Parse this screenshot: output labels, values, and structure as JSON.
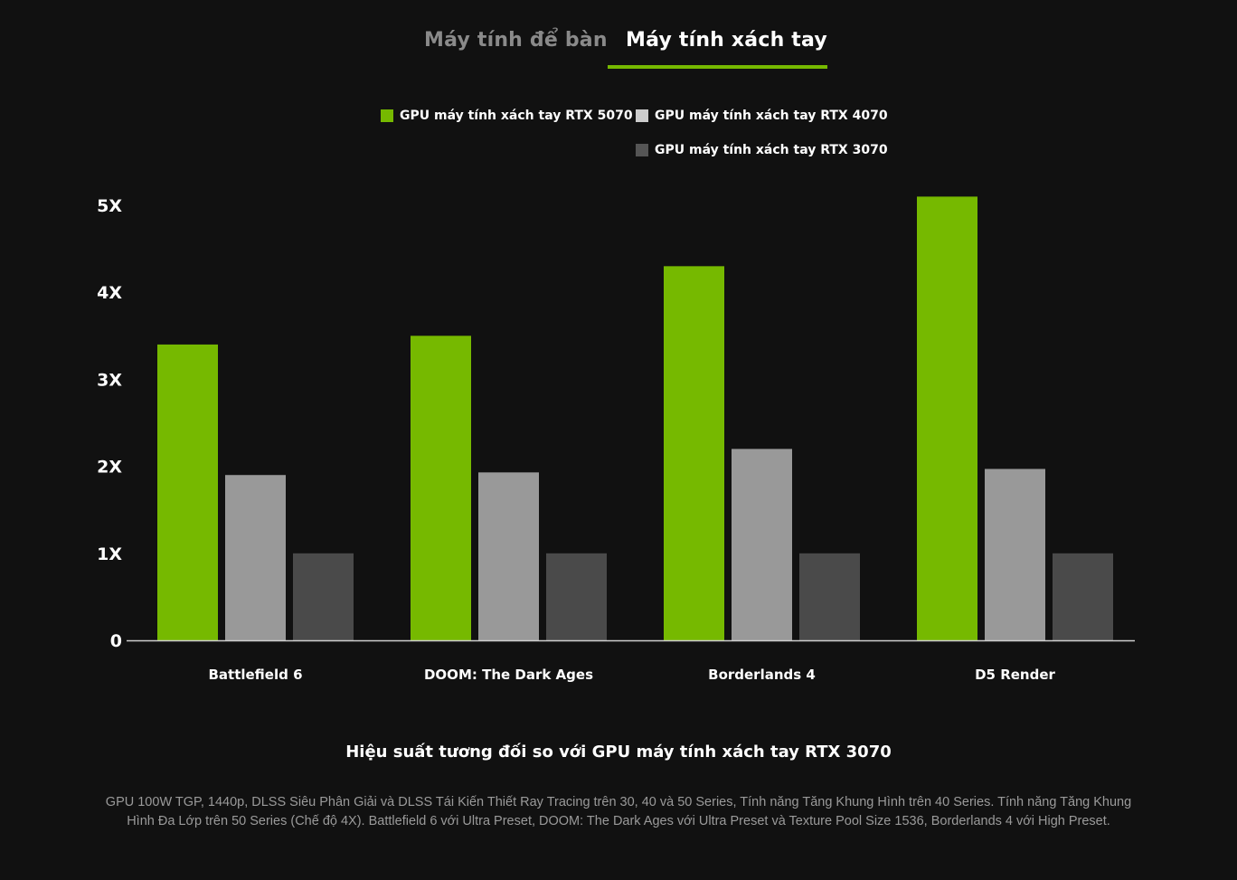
{
  "tabs": [
    {
      "label": "Máy tính để bàn",
      "active": false
    },
    {
      "label": "Máy tính xách tay",
      "active": true
    }
  ],
  "colors": {
    "accent": "#76b900",
    "series_5070": "#76b900",
    "series_4070": "#999999",
    "series_3070": "#4a4a4a",
    "background": "#111111"
  },
  "chart_data": {
    "type": "bar",
    "title": "Hiệu suất tương đối so với GPU máy tính xách tay RTX 3070",
    "categories": [
      "Battlefield 6",
      "DOOM: The Dark Ages",
      "Borderlands 4",
      "D5 Render"
    ],
    "series": [
      {
        "name": "GPU máy tính xách tay RTX 5070",
        "color": "#76b900",
        "legend_swatch": "#76b900",
        "values": [
          3.4,
          3.5,
          4.3,
          5.1
        ]
      },
      {
        "name": "GPU máy tính xách tay RTX 4070",
        "color": "#999999",
        "legend_swatch": "#cccccc",
        "values": [
          1.9,
          1.93,
          2.2,
          1.97
        ]
      },
      {
        "name": "GPU máy tính xách tay RTX 3070",
        "color": "#4a4a4a",
        "legend_swatch": "#555555",
        "values": [
          1.0,
          1.0,
          1.0,
          1.0
        ]
      }
    ],
    "yticks": [
      {
        "value": 0,
        "label": "0"
      },
      {
        "value": 1,
        "label": "1X"
      },
      {
        "value": 2,
        "label": "2X"
      },
      {
        "value": 3,
        "label": "3X"
      },
      {
        "value": 4,
        "label": "4X"
      },
      {
        "value": 5,
        "label": "5X"
      }
    ],
    "ylim": [
      0,
      5.1
    ],
    "grid": false,
    "legend_position": "top-center"
  },
  "footnote": "GPU 100W TGP, 1440p, DLSS Siêu Phân Giải và DLSS Tái Kiến Thiết Ray Tracing trên 30, 40 và 50 Series, Tính năng Tăng Khung Hình trên 40 Series. Tính năng Tăng Khung Hình Đa Lớp trên 50 Series (Chế độ 4X). Battlefield 6 với Ultra Preset, DOOM: The Dark Ages với Ultra Preset và Texture Pool Size 1536, Borderlands 4 với High Preset."
}
